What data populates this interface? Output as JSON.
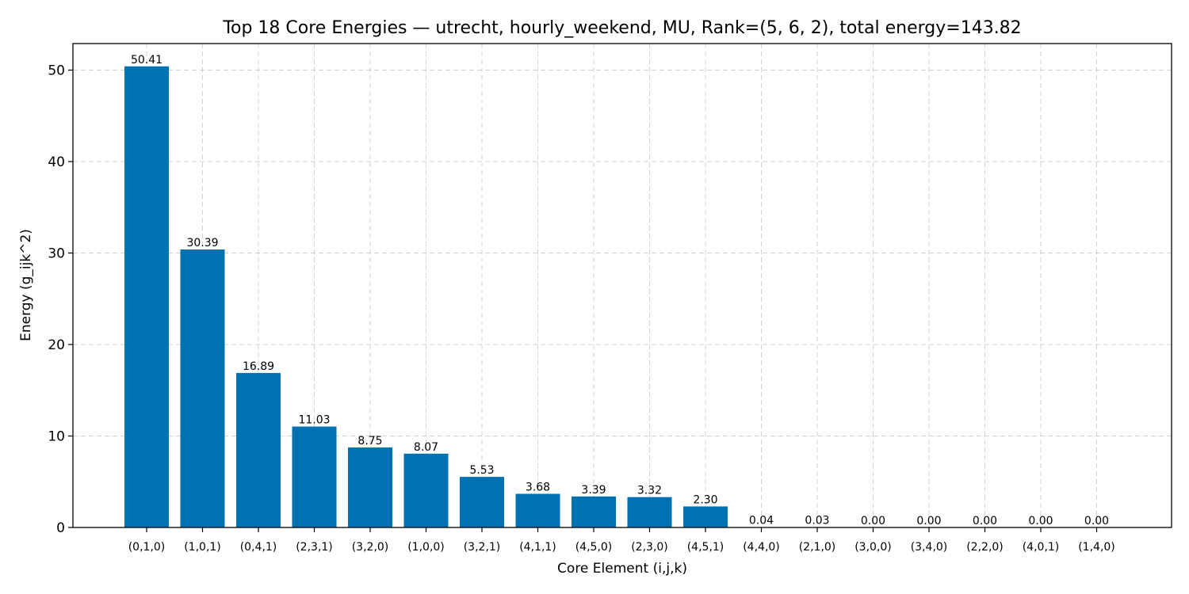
{
  "chart_data": {
    "type": "bar",
    "title": "Top 18 Core Energies — utrecht, hourly_weekend, MU, Rank=(5, 6, 2), total energy=143.82",
    "xlabel": "Core Element (i,j,k)",
    "ylabel": "Energy (g_ijk^2)",
    "ylim": [
      0,
      52.9
    ],
    "yticks": [
      0,
      10,
      20,
      30,
      40,
      50
    ],
    "grid": true,
    "bar_color": "#0072B2",
    "categories": [
      "(0,1,0)",
      "(1,0,1)",
      "(0,4,1)",
      "(2,3,1)",
      "(3,2,0)",
      "(1,0,0)",
      "(3,2,1)",
      "(4,1,1)",
      "(4,5,0)",
      "(2,3,0)",
      "(4,5,1)",
      "(4,4,0)",
      "(2,1,0)",
      "(3,0,0)",
      "(3,4,0)",
      "(2,2,0)",
      "(4,0,1)",
      "(1,4,0)"
    ],
    "values": [
      50.41,
      30.39,
      16.89,
      11.03,
      8.75,
      8.07,
      5.53,
      3.68,
      3.39,
      3.32,
      2.3,
      0.04,
      0.03,
      0.0,
      0.0,
      0.0,
      0.0,
      0.0
    ],
    "value_labels": [
      "50.41",
      "30.39",
      "16.89",
      "11.03",
      "8.75",
      "8.07",
      "5.53",
      "3.68",
      "3.39",
      "3.32",
      "2.30",
      "0.04",
      "0.03",
      "0.00",
      "0.00",
      "0.00",
      "0.00",
      "0.00"
    ]
  }
}
